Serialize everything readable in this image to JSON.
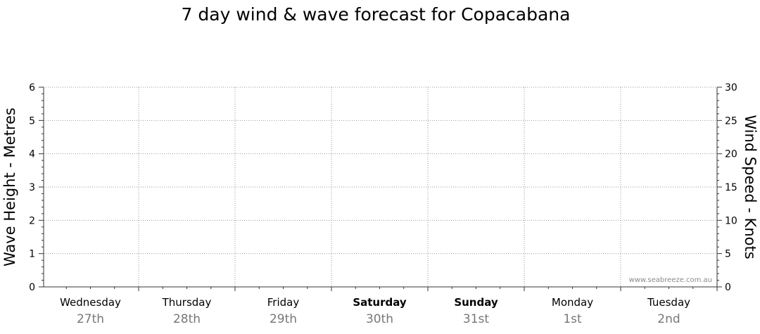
{
  "chart_data": {
    "type": "line",
    "title": "7 day wind & wave forecast for Copacabana",
    "ylabel_left": "Wave Height - Metres",
    "ylabel_right": "Wind Speed - Knots",
    "ylim_left": [
      0,
      6
    ],
    "ylim_right": [
      0,
      30
    ],
    "yticks_left": [
      "0",
      "1",
      "2",
      "3",
      "4",
      "5",
      "6"
    ],
    "yticks_right": [
      "0",
      "5",
      "10",
      "15",
      "20",
      "25",
      "30"
    ],
    "grid": true,
    "days": [
      {
        "day": "Wednesday",
        "date": "27th",
        "weekend": false
      },
      {
        "day": "Thursday",
        "date": "28th",
        "weekend": false
      },
      {
        "day": "Friday",
        "date": "29th",
        "weekend": false
      },
      {
        "day": "Saturday",
        "date": "30th",
        "weekend": true
      },
      {
        "day": "Sunday",
        "date": "31st",
        "weekend": true
      },
      {
        "day": "Monday",
        "date": "1st",
        "weekend": false
      },
      {
        "day": "Tuesday",
        "date": "2nd",
        "weekend": false
      }
    ],
    "series": []
  },
  "watermark": "www.seabreeze.com.au"
}
